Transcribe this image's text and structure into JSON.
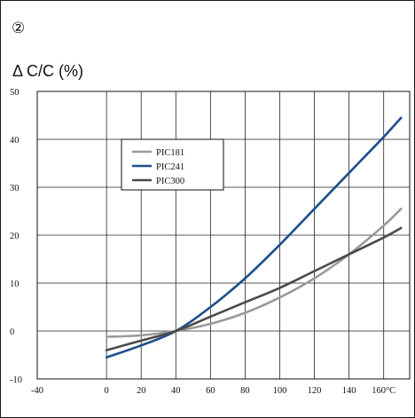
{
  "panel_label": "②",
  "y_axis_title": "Δ C/C (%)",
  "chart_data": {
    "type": "line",
    "title": "",
    "xlabel": "",
    "ylabel": "Δ C/C (%)",
    "xlim": [
      -40,
      175
    ],
    "ylim": [
      -10,
      50
    ],
    "grid": true,
    "legend_position": "upper-left-center",
    "x_ticks": [
      {
        "value": -40,
        "label": "-40"
      },
      {
        "value": 0,
        "label": "0"
      },
      {
        "value": 20,
        "label": "20"
      },
      {
        "value": 40,
        "label": "40"
      },
      {
        "value": 60,
        "label": "60"
      },
      {
        "value": 80,
        "label": "80"
      },
      {
        "value": 100,
        "label": "100"
      },
      {
        "value": 120,
        "label": "120"
      },
      {
        "value": 140,
        "label": "140"
      },
      {
        "value": 160,
        "label": "160°C"
      }
    ],
    "y_ticks": [
      {
        "value": -10,
        "label": "-10"
      },
      {
        "value": 0,
        "label": "0"
      },
      {
        "value": 10,
        "label": "10"
      },
      {
        "value": 20,
        "label": "20"
      },
      {
        "value": 30,
        "label": "30"
      },
      {
        "value": 40,
        "label": "40"
      },
      {
        "value": 50,
        "label": "50"
      }
    ],
    "series": [
      {
        "name": "PIC181",
        "color": "#9a9a9a",
        "x": [
          0,
          20,
          40,
          60,
          80,
          100,
          120,
          140,
          160,
          170
        ],
        "y": [
          -1.2,
          -0.9,
          0,
          1.5,
          3.8,
          7.0,
          11.0,
          16.0,
          22.0,
          25.5
        ]
      },
      {
        "name": "PIC241",
        "color": "#1c4e8c",
        "x": [
          0,
          20,
          40,
          60,
          80,
          100,
          120,
          140,
          160,
          170
        ],
        "y": [
          -5.5,
          -3.0,
          0,
          5.0,
          11.0,
          18.0,
          25.5,
          33.0,
          40.5,
          44.5
        ]
      },
      {
        "name": "PIC300",
        "color": "#4a4a4a",
        "x": [
          0,
          20,
          40,
          60,
          80,
          100,
          120,
          140,
          160,
          170
        ],
        "y": [
          -4.0,
          -2.0,
          0,
          3.0,
          6.0,
          9.0,
          12.5,
          16.0,
          19.5,
          21.5
        ]
      }
    ]
  }
}
